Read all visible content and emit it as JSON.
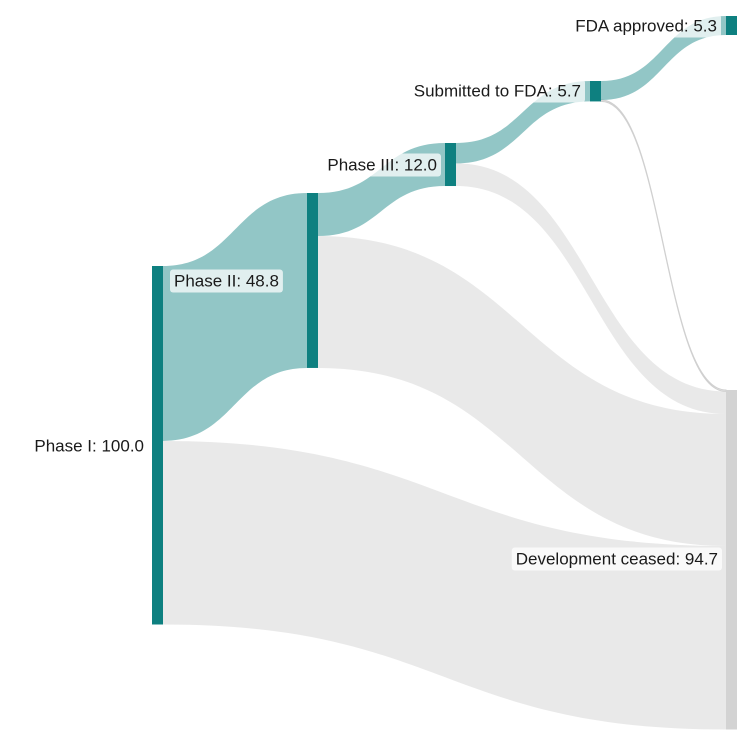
{
  "chart_data": {
    "type": "sankey",
    "title": "",
    "nodes": [
      {
        "id": "phase1",
        "label": "Phase I",
        "value": 100.0,
        "color": "#0e8080",
        "label_text": "Phase I: 100.0"
      },
      {
        "id": "phase2",
        "label": "Phase II",
        "value": 48.8,
        "color": "#0e8080",
        "label_text": "Phase II: 48.8"
      },
      {
        "id": "phase3",
        "label": "Phase III",
        "value": 12.0,
        "color": "#0e8080",
        "label_text": "Phase III: 12.0"
      },
      {
        "id": "submitted",
        "label": "Submitted to FDA",
        "value": 5.7,
        "color": "#0e8080",
        "label_text": "Submitted to FDA: 5.7"
      },
      {
        "id": "approved",
        "label": "FDA approved",
        "value": 5.3,
        "color": "#0e8080",
        "label_text": "FDA approved: 5.3"
      },
      {
        "id": "ceased",
        "label": "Development ceased",
        "value": 94.7,
        "color": "#d3d3d3",
        "label_text": "Development ceased: 94.7"
      }
    ],
    "links": [
      {
        "source": "phase1",
        "target": "phase2",
        "value": 48.8,
        "kind": "progress"
      },
      {
        "source": "phase1",
        "target": "ceased",
        "value": 51.2,
        "kind": "ceased"
      },
      {
        "source": "phase2",
        "target": "phase3",
        "value": 12.0,
        "kind": "progress"
      },
      {
        "source": "phase2",
        "target": "ceased",
        "value": 36.8,
        "kind": "ceased"
      },
      {
        "source": "phase3",
        "target": "submitted",
        "value": 5.7,
        "kind": "progress"
      },
      {
        "source": "phase3",
        "target": "ceased",
        "value": 6.3,
        "kind": "ceased"
      },
      {
        "source": "submitted",
        "target": "approved",
        "value": 5.3,
        "kind": "progress"
      },
      {
        "source": "submitted",
        "target": "ceased",
        "value": 0.4,
        "kind": "ceased"
      }
    ],
    "colors": {
      "node": "#0e8080",
      "ceased_node": "#d3d3d3",
      "progress_link": "#0e8080",
      "ceased_link": "#dcdcdc"
    }
  }
}
